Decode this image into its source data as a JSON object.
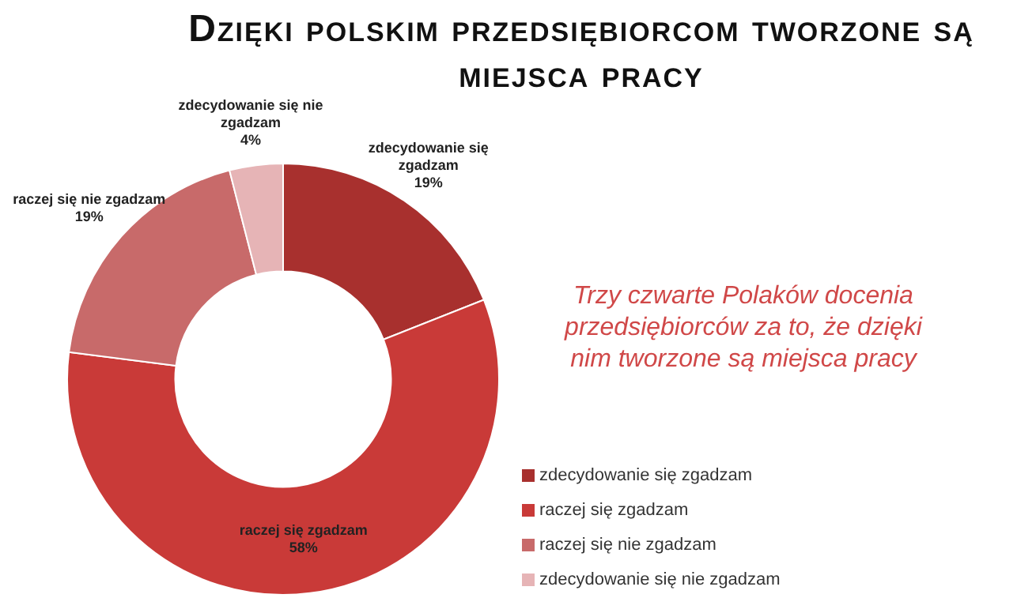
{
  "chart_data": {
    "type": "donut",
    "title": "Dzięki polskim przedsiębiorcom tworzone są miejsca pracy",
    "categories": [
      "zdecydowanie się zgadzam",
      "raczej się zgadzam",
      "raczej się nie zgadzam",
      "zdecydowanie się nie zgadzam"
    ],
    "values": [
      19,
      58,
      19,
      4
    ],
    "value_labels": [
      "19%",
      "58%",
      "19%",
      "4%"
    ],
    "colors": [
      "#a8302e",
      "#c93a38",
      "#c86a6a",
      "#e6b4b6"
    ],
    "legend": "bottom right",
    "annotations": [
      "Trzy czwarte Polaków docenia przedsiębiorców za to, że dzięki nim tworzone są miejsca pracy"
    ]
  }
}
